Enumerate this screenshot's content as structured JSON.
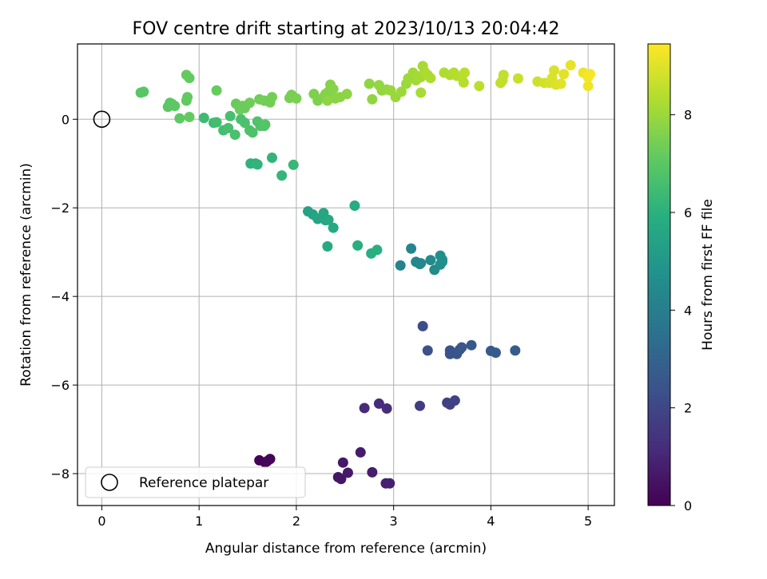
{
  "chart_data": {
    "type": "scatter",
    "title": "FOV centre drift starting at 2023/10/13 20:04:42",
    "xlabel": "Angular distance from reference (arcmin)",
    "ylabel": "Rotation from reference (arcmin)",
    "xlim": [
      -0.25,
      5.27
    ],
    "ylim": [
      -8.72,
      1.7
    ],
    "x_ticks": [
      0,
      1,
      2,
      3,
      4,
      5
    ],
    "y_ticks": [
      -8,
      -6,
      -4,
      -2,
      0
    ],
    "grid": true,
    "colormap": "viridis",
    "colorbar": {
      "label": "Hours from first FF file",
      "range": [
        0,
        9.45
      ],
      "ticks": [
        0,
        2,
        4,
        6,
        8
      ]
    },
    "legend": {
      "placement": "lower-left",
      "entries": [
        "Reference platepar"
      ]
    },
    "reference_point": {
      "x": 0,
      "y": 0
    },
    "points": [
      [
        1.62,
        -7.7,
        0.05
      ],
      [
        1.68,
        -7.75,
        0.1
      ],
      [
        1.73,
        -7.67,
        0.12
      ],
      [
        1.7,
        -7.72,
        0.15
      ],
      [
        2.43,
        -8.08,
        0.5
      ],
      [
        2.46,
        -8.12,
        0.55
      ],
      [
        2.48,
        -7.75,
        0.6
      ],
      [
        2.53,
        -7.98,
        0.65
      ],
      [
        2.66,
        -7.52,
        0.7
      ],
      [
        2.78,
        -7.97,
        0.75
      ],
      [
        2.92,
        -8.22,
        0.8
      ],
      [
        2.96,
        -8.22,
        0.85
      ],
      [
        2.7,
        -6.52,
        1.1
      ],
      [
        2.85,
        -6.42,
        1.15
      ],
      [
        2.93,
        -6.53,
        1.2
      ],
      [
        3.27,
        -6.47,
        1.7
      ],
      [
        3.55,
        -6.4,
        1.75
      ],
      [
        3.58,
        -6.44,
        1.8
      ],
      [
        3.63,
        -6.35,
        1.85
      ],
      [
        3.3,
        -4.67,
        2.2
      ],
      [
        3.35,
        -5.22,
        2.3
      ],
      [
        3.58,
        -5.22,
        2.35
      ],
      [
        3.58,
        -5.3,
        2.4
      ],
      [
        3.65,
        -5.3,
        2.45
      ],
      [
        3.68,
        -5.2,
        2.5
      ],
      [
        3.7,
        -5.15,
        2.55
      ],
      [
        3.8,
        -5.1,
        2.6
      ],
      [
        4.0,
        -5.23,
        2.65
      ],
      [
        4.05,
        -5.27,
        2.7
      ],
      [
        4.25,
        -5.22,
        2.75
      ],
      [
        3.07,
        -3.3,
        4.2
      ],
      [
        3.18,
        -2.92,
        4.25
      ],
      [
        3.23,
        -3.22,
        4.3
      ],
      [
        3.27,
        -3.27,
        4.35
      ],
      [
        3.28,
        -3.25,
        4.4
      ],
      [
        3.38,
        -3.18,
        4.45
      ],
      [
        3.42,
        -3.4,
        4.5
      ],
      [
        3.48,
        -3.28,
        4.55
      ],
      [
        3.48,
        -3.08,
        4.6
      ],
      [
        3.5,
        -3.17,
        4.65
      ],
      [
        3.5,
        -3.22,
        4.7
      ],
      [
        2.12,
        -2.08,
        5.4
      ],
      [
        2.17,
        -2.15,
        5.45
      ],
      [
        2.22,
        -2.25,
        5.5
      ],
      [
        2.28,
        -2.12,
        5.55
      ],
      [
        2.3,
        -2.28,
        5.6
      ],
      [
        2.33,
        -2.27,
        5.65
      ],
      [
        2.38,
        -2.45,
        5.7
      ],
      [
        2.32,
        -2.87,
        5.75
      ],
      [
        2.6,
        -1.95,
        5.8
      ],
      [
        2.63,
        -2.85,
        5.85
      ],
      [
        2.77,
        -3.03,
        5.9
      ],
      [
        2.83,
        -2.95,
        5.95
      ],
      [
        1.53,
        -1.0,
        6.05
      ],
      [
        1.58,
        -1.0,
        6.1
      ],
      [
        1.6,
        -1.02,
        6.12
      ],
      [
        1.75,
        -0.87,
        6.15
      ],
      [
        1.85,
        -1.27,
        6.2
      ],
      [
        1.97,
        -1.03,
        6.25
      ],
      [
        1.05,
        0.03,
        6.4
      ],
      [
        1.15,
        -0.08,
        6.45
      ],
      [
        1.18,
        -0.07,
        6.5
      ],
      [
        1.25,
        -0.25,
        6.55
      ],
      [
        1.3,
        -0.2,
        6.6
      ],
      [
        1.32,
        0.07,
        6.62
      ],
      [
        1.37,
        -0.35,
        6.65
      ],
      [
        1.43,
        0.0,
        6.68
      ],
      [
        1.47,
        -0.08,
        6.7
      ],
      [
        1.52,
        -0.25,
        6.72
      ],
      [
        1.55,
        -0.3,
        6.75
      ],
      [
        1.6,
        -0.05,
        6.78
      ],
      [
        1.63,
        -0.15,
        6.8
      ],
      [
        1.67,
        -0.15,
        6.82
      ],
      [
        1.68,
        -0.12,
        6.85
      ],
      [
        0.4,
        0.6,
        6.95
      ],
      [
        0.43,
        0.62,
        6.97
      ],
      [
        0.68,
        0.28,
        7.0
      ],
      [
        0.7,
        0.37,
        7.02
      ],
      [
        0.72,
        0.35,
        7.03
      ],
      [
        0.75,
        0.3,
        7.05
      ],
      [
        0.8,
        0.02,
        7.07
      ],
      [
        0.87,
        0.42,
        7.1
      ],
      [
        0.88,
        0.5,
        7.12
      ],
      [
        0.9,
        0.93,
        7.13
      ],
      [
        0.87,
        1.0,
        7.15
      ],
      [
        0.9,
        0.05,
        7.17
      ],
      [
        1.18,
        0.65,
        7.2
      ],
      [
        1.38,
        0.35,
        7.22
      ],
      [
        1.42,
        0.22,
        7.25
      ],
      [
        1.45,
        0.3,
        7.27
      ],
      [
        1.47,
        0.25,
        7.3
      ],
      [
        1.52,
        0.37,
        7.32
      ],
      [
        1.62,
        0.45,
        7.35
      ],
      [
        1.67,
        0.42,
        7.37
      ],
      [
        1.73,
        0.38,
        7.4
      ],
      [
        1.75,
        0.5,
        7.42
      ],
      [
        1.93,
        0.48,
        7.45
      ],
      [
        1.95,
        0.55,
        7.47
      ],
      [
        2.0,
        0.47,
        7.5
      ],
      [
        2.18,
        0.57,
        7.55
      ],
      [
        2.22,
        0.42,
        7.57
      ],
      [
        2.28,
        0.5,
        7.6
      ],
      [
        2.3,
        0.57,
        7.62
      ],
      [
        2.33,
        0.62,
        7.65
      ],
      [
        2.35,
        0.78,
        7.67
      ],
      [
        2.38,
        0.68,
        7.7
      ],
      [
        2.4,
        0.47,
        7.72
      ],
      [
        2.45,
        0.5,
        7.75
      ],
      [
        2.52,
        0.57,
        7.77
      ],
      [
        2.32,
        0.42,
        7.8
      ],
      [
        2.75,
        0.8,
        7.82
      ],
      [
        2.78,
        0.45,
        7.85
      ],
      [
        2.85,
        0.77,
        7.87
      ],
      [
        2.88,
        0.65,
        7.9
      ],
      [
        2.93,
        0.67,
        7.92
      ],
      [
        2.97,
        0.65,
        7.95
      ],
      [
        3.02,
        0.5,
        7.97
      ],
      [
        3.08,
        0.62,
        8.0
      ],
      [
        3.13,
        0.8,
        8.02
      ],
      [
        3.15,
        0.92,
        8.05
      ],
      [
        3.2,
        1.05,
        8.07
      ],
      [
        3.23,
        0.88,
        8.1
      ],
      [
        3.25,
        0.97,
        8.12
      ],
      [
        3.28,
        0.95,
        8.15
      ],
      [
        3.3,
        1.2,
        8.17
      ],
      [
        3.28,
        0.6,
        8.2
      ],
      [
        3.32,
        1.07,
        8.22
      ],
      [
        3.35,
        1.0,
        8.25
      ],
      [
        3.38,
        0.93,
        8.27
      ],
      [
        3.52,
        1.05,
        8.3
      ],
      [
        3.58,
        1.0,
        8.32
      ],
      [
        3.62,
        1.05,
        8.35
      ],
      [
        3.65,
        0.98,
        8.37
      ],
      [
        3.7,
        0.95,
        8.4
      ],
      [
        3.72,
        0.83,
        8.42
      ],
      [
        3.73,
        1.05,
        8.45
      ],
      [
        3.88,
        0.75,
        8.47
      ],
      [
        4.1,
        0.82,
        8.55
      ],
      [
        4.12,
        0.88,
        8.57
      ],
      [
        4.13,
        1.0,
        8.6
      ],
      [
        4.28,
        0.92,
        8.65
      ],
      [
        4.48,
        0.85,
        8.75
      ],
      [
        4.55,
        0.82,
        8.8
      ],
      [
        4.6,
        0.82,
        8.85
      ],
      [
        4.63,
        0.93,
        8.9
      ],
      [
        4.65,
        1.1,
        8.92
      ],
      [
        4.67,
        0.78,
        8.95
      ],
      [
        4.72,
        0.8,
        9.0
      ],
      [
        4.75,
        1.02,
        9.05
      ],
      [
        4.82,
        1.22,
        9.1
      ],
      [
        4.95,
        1.05,
        9.2
      ],
      [
        5.0,
        0.75,
        9.25
      ],
      [
        5.0,
        0.95,
        9.3
      ],
      [
        5.02,
        1.02,
        9.35
      ]
    ]
  }
}
